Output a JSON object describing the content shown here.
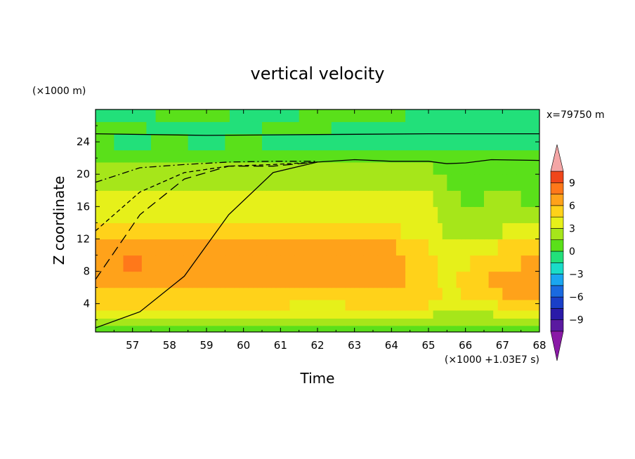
{
  "chart_data": {
    "type": "heatmap",
    "title": "vertical velocity",
    "xlabel": "Time",
    "ylabel": "Z coordinate",
    "x_scale_note": "(×1000 +1.03E7 s)",
    "y_scale_note": "(×1000 m)",
    "annotation": "x=79750 m",
    "xlim": [
      56.0,
      68.0
    ],
    "ylim": [
      0.5,
      28.0
    ],
    "x_ticks": [
      "57",
      "58",
      "59",
      "60",
      "61",
      "62",
      "63",
      "64",
      "65",
      "66",
      "67",
      "68"
    ],
    "y_ticks": [
      "4",
      "8",
      "12",
      "16",
      "20",
      "24"
    ],
    "colorbar": {
      "tick_labels": [
        "9",
        "6",
        "3",
        "0",
        "−3",
        "−6",
        "−9"
      ],
      "tick_values": [
        9,
        6,
        3,
        0,
        -3,
        -6,
        -9
      ],
      "levels": [
        -10.5,
        -9,
        -7.5,
        -6,
        -4.5,
        -3,
        -1.5,
        0,
        1.5,
        3,
        4.5,
        6,
        7.5,
        9,
        10.5
      ],
      "colors": [
        "#8a1aa6",
        "#5a1aa0",
        "#2a1aa8",
        "#1a3fc8",
        "#1a6ae0",
        "#1aa6f0",
        "#1adcc8",
        "#22e07a",
        "#5ae01a",
        "#a6e61a",
        "#e6f01a",
        "#ffd21a",
        "#ffa21a",
        "#ff781a",
        "#f0461a",
        "#f4a6a6"
      ],
      "extend": "both"
    },
    "field_times": [
      56.0,
      57.0,
      58.0,
      59.0,
      60.0,
      61.0,
      62.0,
      63.0,
      64.0,
      65.0,
      65.5,
      66.0,
      67.0,
      68.0
    ],
    "field_bands": [
      {
        "z_lo": 0.5,
        "z_hi": 1.3,
        "values": [
          0.8,
          0.8,
          0.9,
          0.9,
          0.9,
          0.9,
          0.9,
          0.9,
          0.9,
          0.9,
          0.8,
          0.8,
          0.8,
          0.8
        ]
      },
      {
        "z_lo": 1.3,
        "z_hi": 2.2,
        "values": [
          1.8,
          1.9,
          2.0,
          2.0,
          2.0,
          2.0,
          2.0,
          2.0,
          2.0,
          1.9,
          1.7,
          1.6,
          1.8,
          1.8
        ]
      },
      {
        "z_lo": 2.2,
        "z_hi": 3.2,
        "values": [
          3.2,
          3.3,
          3.3,
          3.3,
          3.2,
          3.2,
          3.0,
          3.2,
          3.2,
          3.2,
          2.4,
          2.2,
          3.2,
          3.4
        ]
      },
      {
        "z_lo": 3.2,
        "z_hi": 4.5,
        "values": [
          4.6,
          4.8,
          4.8,
          4.8,
          4.6,
          4.6,
          4.2,
          4.6,
          4.6,
          4.6,
          3.4,
          3.0,
          4.6,
          4.8
        ]
      },
      {
        "z_lo": 4.5,
        "z_hi": 6.0,
        "values": [
          5.6,
          5.8,
          5.8,
          5.8,
          5.6,
          5.6,
          5.0,
          5.6,
          5.6,
          5.0,
          4.2,
          4.6,
          6.0,
          6.2
        ]
      },
      {
        "z_lo": 6.0,
        "z_hi": 8.0,
        "values": [
          6.4,
          7.0,
          6.6,
          6.6,
          6.6,
          6.6,
          6.2,
          6.4,
          6.4,
          5.2,
          4.0,
          5.0,
          6.6,
          6.8
        ]
      },
      {
        "z_lo": 8.0,
        "z_hi": 10.0,
        "values": [
          6.4,
          7.8,
          6.8,
          6.8,
          6.8,
          6.6,
          6.6,
          6.6,
          6.6,
          5.2,
          3.6,
          4.4,
          5.8,
          6.2
        ]
      },
      {
        "z_lo": 10.0,
        "z_hi": 12.0,
        "values": [
          6.0,
          6.6,
          6.6,
          6.6,
          6.4,
          6.0,
          6.2,
          6.4,
          6.2,
          4.6,
          3.0,
          3.6,
          4.6,
          5.4
        ]
      },
      {
        "z_lo": 12.0,
        "z_hi": 14.0,
        "values": [
          4.8,
          5.0,
          5.4,
          5.2,
          5.0,
          4.8,
          5.0,
          4.8,
          4.6,
          4.2,
          2.6,
          2.8,
          3.0,
          3.4
        ]
      },
      {
        "z_lo": 14.0,
        "z_hi": 16.0,
        "values": [
          4.0,
          4.2,
          4.4,
          4.4,
          4.2,
          4.0,
          4.0,
          4.0,
          4.0,
          3.6,
          2.2,
          2.2,
          2.4,
          2.2
        ]
      },
      {
        "z_lo": 16.0,
        "z_hi": 18.0,
        "values": [
          3.4,
          3.4,
          3.4,
          3.4,
          3.4,
          3.4,
          3.4,
          3.4,
          3.2,
          3.2,
          1.8,
          1.4,
          1.6,
          1.4
        ]
      },
      {
        "z_lo": 18.0,
        "z_hi": 20.0,
        "values": [
          2.6,
          2.6,
          2.6,
          2.6,
          2.6,
          2.6,
          2.6,
          2.6,
          2.6,
          2.4,
          1.4,
          1.0,
          1.0,
          0.8
        ]
      },
      {
        "z_lo": 20.0,
        "z_hi": 21.5,
        "values": [
          1.8,
          1.6,
          1.6,
          1.6,
          1.6,
          1.6,
          1.6,
          1.6,
          1.6,
          1.6,
          1.0,
          0.8,
          0.8,
          0.7
        ]
      },
      {
        "z_lo": 21.5,
        "z_hi": 23.0,
        "values": [
          0.8,
          0.6,
          0.7,
          0.9,
          0.8,
          0.7,
          0.6,
          0.6,
          0.6,
          0.6,
          0.4,
          0.4,
          0.4,
          0.4
        ]
      },
      {
        "z_lo": 23.0,
        "z_hi": 25.0,
        "values": [
          0.2,
          -0.2,
          0.2,
          -0.2,
          0.2,
          -0.2,
          -0.2,
          -0.3,
          -0.3,
          -0.2,
          -0.3,
          -0.4,
          -0.3,
          -0.2
        ]
      },
      {
        "z_lo": 25.0,
        "z_hi": 26.5,
        "values": [
          0.4,
          0.1,
          -0.2,
          -0.3,
          -0.2,
          0.2,
          0.1,
          -0.2,
          -0.3,
          -0.2,
          -0.2,
          -0.4,
          -0.3,
          -0.2
        ]
      },
      {
        "z_lo": 26.5,
        "z_hi": 28.0,
        "values": [
          -0.2,
          -0.3,
          0.2,
          0.3,
          -0.2,
          -0.3,
          0.3,
          0.2,
          0.1,
          -0.2,
          -0.3,
          -0.4,
          -0.3,
          -0.3
        ]
      }
    ],
    "overlay_lines": [
      {
        "style": "solid",
        "points": [
          [
            56.0,
            25.0
          ],
          [
            59.0,
            24.8
          ],
          [
            62.0,
            24.9
          ],
          [
            65.0,
            25.0
          ],
          [
            68.0,
            25.0
          ]
        ]
      },
      {
        "style": "solid",
        "points": [
          [
            62.0,
            21.5
          ],
          [
            63.0,
            21.8
          ],
          [
            64.0,
            21.6
          ],
          [
            65.0,
            21.6
          ],
          [
            65.5,
            21.3
          ],
          [
            66.0,
            21.4
          ],
          [
            66.7,
            21.8
          ],
          [
            68.0,
            21.7
          ]
        ]
      },
      {
        "style": "solid",
        "points": [
          [
            56.0,
            1.0
          ],
          [
            57.2,
            3.0
          ],
          [
            58.4,
            7.4
          ],
          [
            59.6,
            15.0
          ],
          [
            60.8,
            20.2
          ],
          [
            62.0,
            21.5
          ]
        ]
      },
      {
        "style": "longdash",
        "points": [
          [
            56.0,
            7.0
          ],
          [
            57.2,
            15.0
          ],
          [
            58.4,
            19.4
          ],
          [
            59.6,
            21.0
          ],
          [
            60.8,
            21.0
          ],
          [
            62.0,
            21.5
          ]
        ]
      },
      {
        "style": "dash",
        "points": [
          [
            56.0,
            13.0
          ],
          [
            57.2,
            17.8
          ],
          [
            58.4,
            20.2
          ],
          [
            59.6,
            21.0
          ],
          [
            60.8,
            21.2
          ],
          [
            62.0,
            21.5
          ]
        ]
      },
      {
        "style": "dashdot",
        "points": [
          [
            56.0,
            19.0
          ],
          [
            57.2,
            20.8
          ],
          [
            58.4,
            21.2
          ],
          [
            59.6,
            21.5
          ],
          [
            60.8,
            21.6
          ],
          [
            62.0,
            21.6
          ]
        ]
      }
    ]
  }
}
